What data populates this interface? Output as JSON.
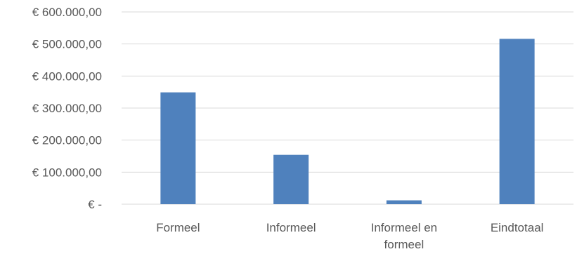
{
  "chart_data": {
    "type": "bar",
    "title": "",
    "xlabel": "",
    "ylabel": "",
    "categories": [
      [
        "Formeel"
      ],
      [
        "Informeel"
      ],
      [
        "Informeel en",
        "formeel"
      ],
      [
        "Eindtotaal"
      ]
    ],
    "values": [
      349000,
      154000,
      12000,
      516000
    ],
    "ylim": [
      0,
      600000
    ],
    "y_ticks": [
      0,
      100000,
      200000,
      300000,
      400000,
      500000,
      600000
    ],
    "y_tick_labels": [
      "€ -",
      "€ 100.000,00",
      "€ 200.000,00",
      "€ 300.000,00",
      "€ 400.000,00",
      "€ 500.000,00",
      "€ 600.000,00"
    ],
    "grid": true,
    "legend": "none",
    "bar_color": "#4f81bd",
    "grid_color": "#d9d9d9",
    "text_color": "#595959"
  }
}
